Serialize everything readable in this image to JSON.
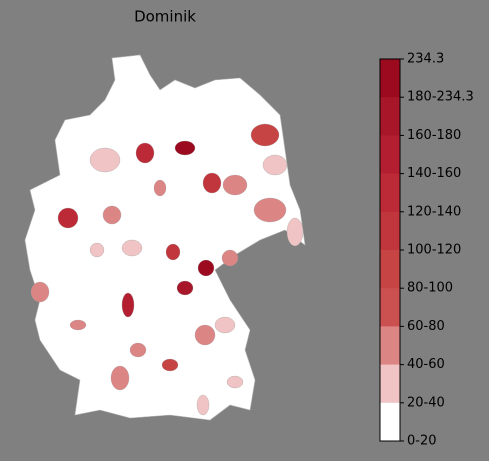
{
  "title": "Dominik",
  "colorbar": {
    "labels": [
      "234.3",
      "180-234.3",
      "160-180",
      "140-160",
      "120-140",
      "100-120",
      "80-100",
      "60-80",
      "40-60",
      "20-40",
      "0-20"
    ],
    "colors": [
      "#9b0a1e",
      "#a8162a",
      "#b31f30",
      "#bb2a36",
      "#c1363c",
      "#c64444",
      "#cb5050",
      "#dc8585",
      "#f0c4c4",
      "#ffffff"
    ]
  }
}
